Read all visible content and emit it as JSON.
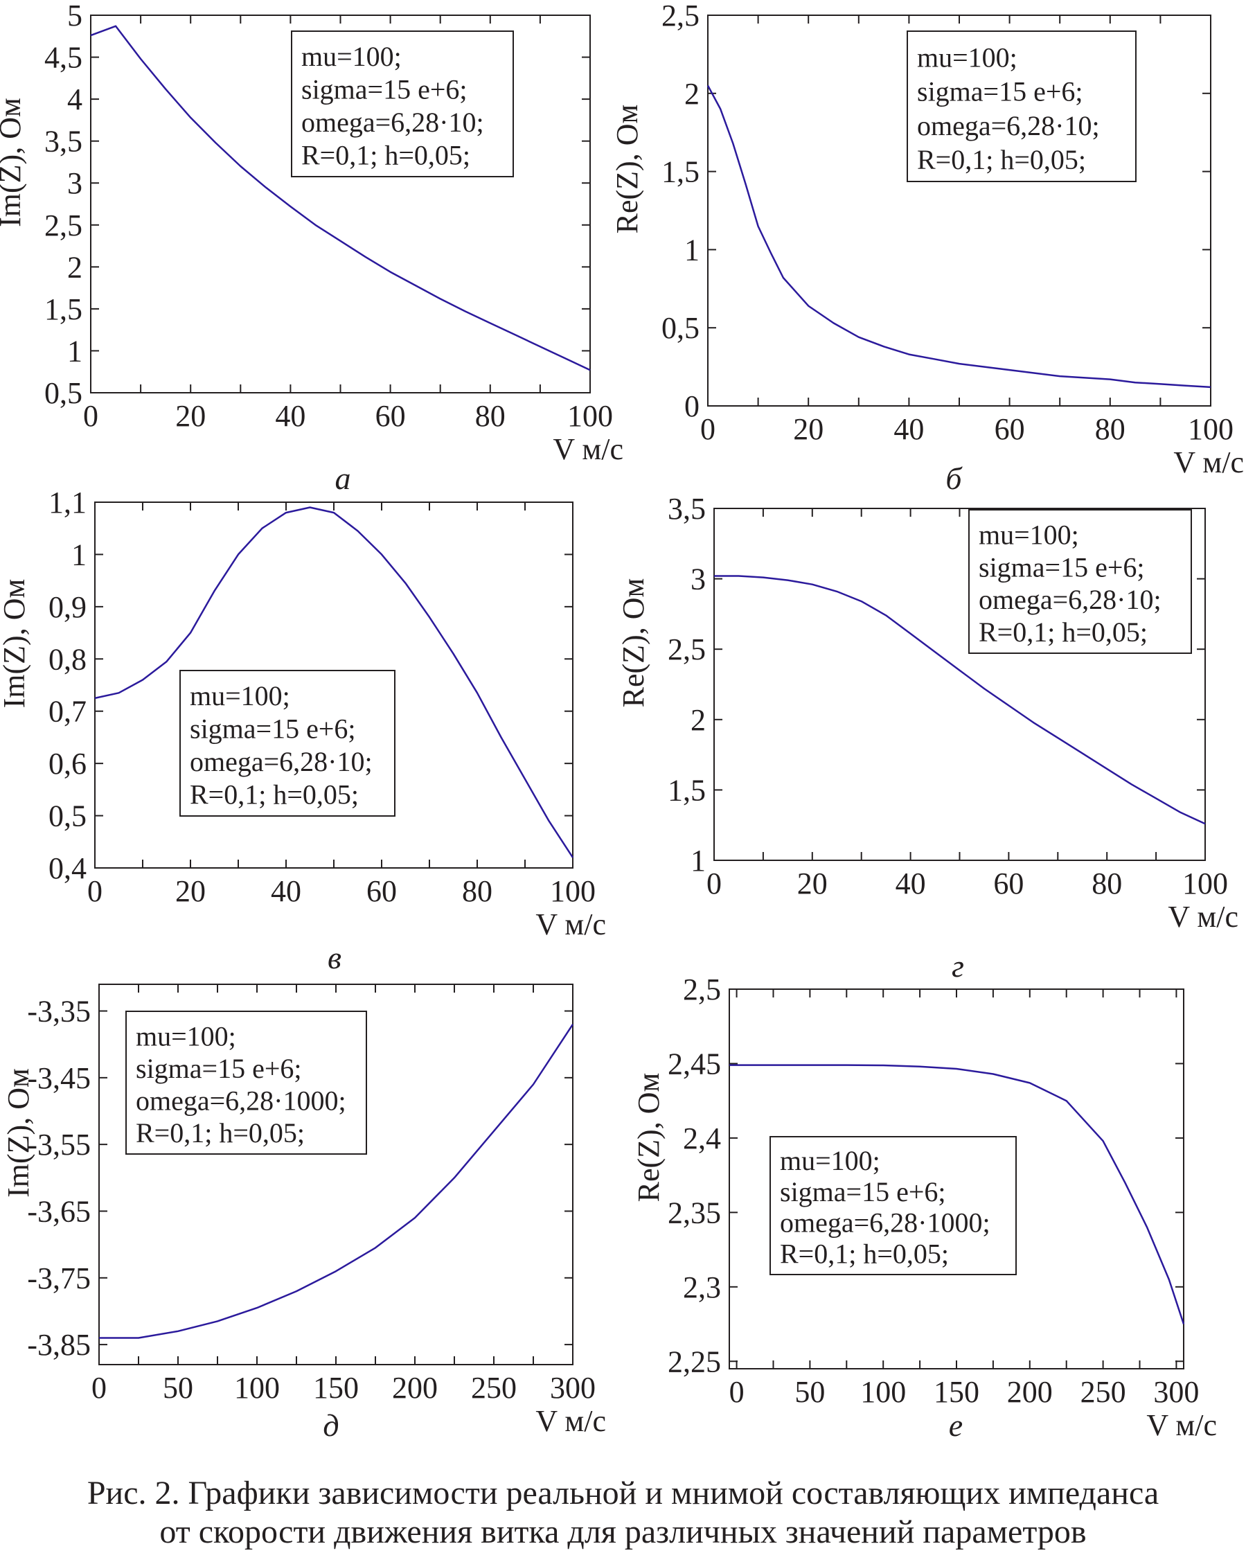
{
  "chart_data": [
    {
      "panel": "а",
      "type": "line",
      "ylabel": "Im(Z), Ом",
      "xlabel": "V м/с",
      "xlim": [
        0,
        100
      ],
      "ylim": [
        0.5,
        5
      ],
      "xticks": [
        "0",
        "20",
        "40",
        "60",
        "80",
        "100"
      ],
      "xtick_values": [
        0,
        20,
        40,
        60,
        80,
        100
      ],
      "yticks": [
        "0,5",
        "1",
        "1,5",
        "2",
        "2,5",
        "3",
        "3,5",
        "4",
        "4,5",
        "5"
      ],
      "ytick_values": [
        0.5,
        1,
        1.5,
        2,
        2.5,
        3,
        3.5,
        4,
        4.5,
        5
      ],
      "legend_position": "top-right",
      "annotation": [
        "mu=100;",
        "sigma=15 e+6;",
        "omega=6,28·10;",
        "R=0,1; h=0,05;"
      ],
      "grid": false,
      "line_color": "#2b1a9c",
      "x": [
        0,
        5,
        10,
        15,
        20,
        25,
        30,
        35,
        40,
        45,
        50,
        55,
        60,
        65,
        70,
        75,
        80,
        85,
        90,
        95,
        100
      ],
      "y": [
        4.76,
        4.87,
        4.48,
        4.12,
        3.78,
        3.48,
        3.2,
        2.95,
        2.72,
        2.5,
        2.31,
        2.12,
        1.94,
        1.78,
        1.62,
        1.47,
        1.33,
        1.19,
        1.05,
        0.91,
        0.77
      ]
    },
    {
      "panel": "б",
      "type": "line",
      "ylabel": "Re(Z), Ом",
      "xlabel": "V м/с",
      "xlim": [
        0,
        100
      ],
      "ylim": [
        0,
        2.5
      ],
      "xticks": [
        "0",
        "20",
        "40",
        "60",
        "80",
        "100"
      ],
      "xtick_values": [
        0,
        20,
        40,
        60,
        80,
        100
      ],
      "yticks": [
        "0",
        "0,5",
        "1",
        "1,5",
        "2",
        "2,5"
      ],
      "ytick_values": [
        0,
        0.5,
        1,
        1.5,
        2,
        2.5
      ],
      "legend_position": "top-right",
      "annotation": [
        "mu=100;",
        "sigma=15 e+6;",
        "omega=6,28·10;",
        "R=0,1; h=0,05;"
      ],
      "grid": false,
      "line_color": "#2b1a9c",
      "x": [
        0,
        2.5,
        5,
        7.5,
        10,
        12.5,
        15,
        20,
        25,
        30,
        35,
        40,
        45,
        50,
        55,
        60,
        65,
        70,
        75,
        80,
        85,
        90,
        95,
        100
      ],
      "y": [
        2.05,
        1.9,
        1.68,
        1.42,
        1.15,
        0.98,
        0.82,
        0.64,
        0.53,
        0.44,
        0.38,
        0.33,
        0.3,
        0.27,
        0.25,
        0.23,
        0.21,
        0.19,
        0.18,
        0.17,
        0.15,
        0.14,
        0.13,
        0.12
      ]
    },
    {
      "panel": "в",
      "type": "line",
      "ylabel": "Im(Z), Ом",
      "xlabel": "V м/с",
      "xlim": [
        0,
        100
      ],
      "ylim": [
        0.4,
        1.1
      ],
      "xticks": [
        "0",
        "20",
        "40",
        "60",
        "80",
        "100"
      ],
      "xtick_values": [
        0,
        20,
        40,
        60,
        80,
        100
      ],
      "yticks": [
        "0,4",
        "0,5",
        "0,6",
        "0,7",
        "0,8",
        "0,9",
        "1",
        "1,1"
      ],
      "ytick_values": [
        0.4,
        0.5,
        0.6,
        0.7,
        0.8,
        0.9,
        1,
        1.1
      ],
      "legend_position": "center-left",
      "annotation": [
        "mu=100;",
        "sigma=15 e+6;",
        "omega=6,28·10;",
        "R=0,1; h=0,05;"
      ],
      "grid": false,
      "line_color": "#2b1a9c",
      "x": [
        0,
        5,
        10,
        15,
        20,
        25,
        30,
        35,
        40,
        45,
        50,
        55,
        60,
        65,
        70,
        75,
        80,
        85,
        90,
        95,
        100
      ],
      "y": [
        0.725,
        0.735,
        0.76,
        0.795,
        0.85,
        0.93,
        1.0,
        1.05,
        1.08,
        1.09,
        1.08,
        1.045,
        1.0,
        0.945,
        0.88,
        0.81,
        0.735,
        0.65,
        0.57,
        0.49,
        0.42
      ]
    },
    {
      "panel": "г",
      "type": "line",
      "ylabel": "Re(Z), Ом",
      "xlabel": "V м/с",
      "xlim": [
        0,
        100
      ],
      "ylim": [
        1,
        3.5
      ],
      "xticks": [
        "0",
        "20",
        "40",
        "60",
        "80",
        "100"
      ],
      "xtick_values": [
        0,
        20,
        40,
        60,
        80,
        100
      ],
      "yticks": [
        "1",
        "1,5",
        "2",
        "2,5",
        "3",
        "3,5"
      ],
      "ytick_values": [
        1,
        1.5,
        2,
        2.5,
        3,
        3.5
      ],
      "legend_position": "top-right",
      "annotation": [
        "mu=100;",
        "sigma=15 e+6;",
        "omega=6,28·10;",
        "R=0,1; h=0,05;"
      ],
      "grid": false,
      "line_color": "#2b1a9c",
      "x": [
        0,
        5,
        10,
        15,
        20,
        25,
        30,
        35,
        40,
        45,
        50,
        55,
        60,
        65,
        70,
        75,
        80,
        85,
        90,
        95,
        100
      ],
      "y": [
        3.02,
        3.02,
        3.01,
        2.99,
        2.96,
        2.91,
        2.84,
        2.74,
        2.61,
        2.48,
        2.35,
        2.22,
        2.1,
        1.98,
        1.87,
        1.76,
        1.65,
        1.54,
        1.44,
        1.34,
        1.26
      ]
    },
    {
      "panel": "д",
      "type": "line",
      "ylabel": "Im(Z), Ом",
      "xlabel": "V м/с",
      "xlim": [
        0,
        300
      ],
      "ylim": [
        -3.88,
        -3.31
      ],
      "xticks": [
        "0",
        "50",
        "100",
        "150",
        "200",
        "250",
        "300"
      ],
      "xtick_values": [
        0,
        50,
        100,
        150,
        200,
        250,
        300
      ],
      "yticks": [
        "-3,85",
        "-3,75",
        "-3,65",
        "-3,55",
        "-3,45",
        "-3,35"
      ],
      "ytick_values": [
        -3.85,
        -3.75,
        -3.65,
        -3.55,
        -3.45,
        -3.35
      ],
      "legend_position": "top-left",
      "annotation": [
        "mu=100;",
        "sigma=15 e+6;",
        "omega=6,28·1000;",
        "R=0,1; h=0,05;"
      ],
      "grid": false,
      "line_color": "#2b1a9c",
      "x": [
        0,
        25,
        50,
        75,
        100,
        125,
        150,
        175,
        200,
        225,
        250,
        275,
        300
      ],
      "y": [
        -3.84,
        -3.84,
        -3.83,
        -3.815,
        -3.795,
        -3.77,
        -3.74,
        -3.705,
        -3.66,
        -3.6,
        -3.53,
        -3.46,
        -3.37
      ]
    },
    {
      "panel": "е",
      "type": "line",
      "ylabel": "Re(Z), Ом",
      "xlabel": "V м/с",
      "xlim": [
        -5,
        305
      ],
      "ylim": [
        2.245,
        2.5
      ],
      "xticks": [
        "0",
        "50",
        "100",
        "150",
        "200",
        "250",
        "300"
      ],
      "xtick_values": [
        0,
        50,
        100,
        150,
        200,
        250,
        300
      ],
      "yticks": [
        "2,25",
        "2,3",
        "2,35",
        "2,4",
        "2,45",
        "2,5"
      ],
      "ytick_values": [
        2.25,
        2.3,
        2.35,
        2.4,
        2.45,
        2.5
      ],
      "legend_position": "bottom-left",
      "annotation": [
        "mu=100;",
        "sigma=15 e+6;",
        "omega=6,28·1000;",
        "R=0,1; h=0,05;"
      ],
      "grid": false,
      "line_color": "#2b1a9c",
      "x": [
        -5,
        25,
        50,
        75,
        100,
        125,
        150,
        175,
        200,
        225,
        250,
        265,
        280,
        295,
        305
      ],
      "y": [
        2.449,
        2.449,
        2.449,
        2.449,
        2.4488,
        2.448,
        2.4465,
        2.443,
        2.437,
        2.425,
        2.398,
        2.37,
        2.34,
        2.305,
        2.275
      ]
    }
  ],
  "caption": {
    "line1": "Рис. 2. Графики зависимости реальной и мнимой составляющих импеданса",
    "line2": "от скорости движения витка для различных значений параметров"
  }
}
